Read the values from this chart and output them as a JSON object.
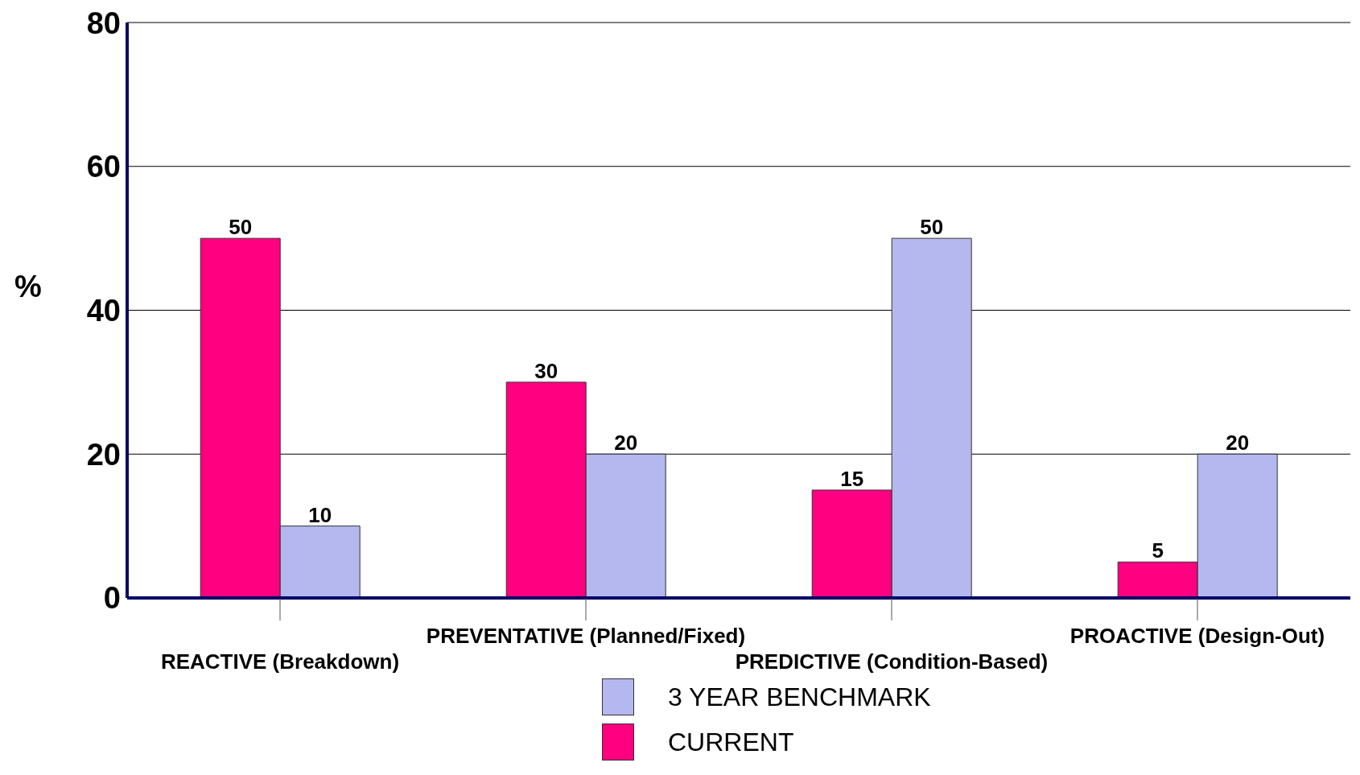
{
  "chart_data": {
    "type": "bar",
    "ylabel": "%",
    "categories": [
      "REACTIVE (Breakdown)",
      "PREVENTATIVE (Planned/Fixed)",
      "PREDICTIVE (Condition-Based)",
      "PROACTIVE (Design-Out)"
    ],
    "series": [
      {
        "name": "CURRENT",
        "color": "#ff0080",
        "values": [
          50,
          30,
          15,
          5
        ]
      },
      {
        "name": "3 YEAR BENCHMARK",
        "color": "#b4b8ee",
        "values": [
          10,
          20,
          50,
          20
        ]
      }
    ],
    "ylim": [
      0,
      80
    ],
    "yticks": [
      0,
      20,
      40,
      60,
      80
    ],
    "grid": "y",
    "legend": "bottom",
    "data_labels": true
  }
}
